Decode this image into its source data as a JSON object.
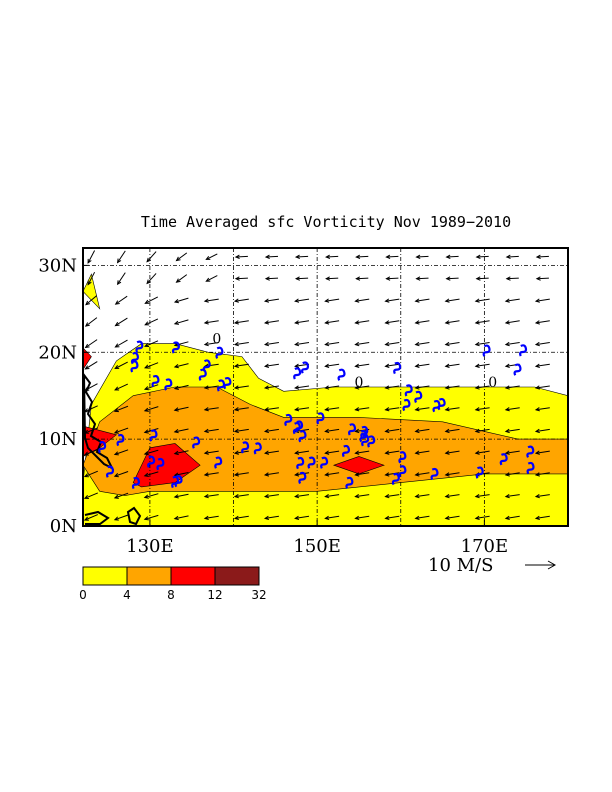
{
  "chart_data": {
    "type": "contour-vector-map",
    "title": "Time Averaged sfc Vorticity  Nov 1989−2010",
    "x_range_deg_east": [
      122,
      180
    ],
    "y_range_deg_north": [
      0,
      32
    ],
    "x_ticks": [
      {
        "value": 130,
        "label": "130E"
      },
      {
        "value": 150,
        "label": "150E"
      },
      {
        "value": 170,
        "label": "170E"
      }
    ],
    "y_ticks": [
      {
        "value": 0,
        "label": "0N"
      },
      {
        "value": 10,
        "label": "10N"
      },
      {
        "value": 20,
        "label": "20N"
      },
      {
        "value": 30,
        "label": "30N"
      }
    ],
    "gridlines": {
      "lon": [
        130,
        140,
        150,
        160,
        170
      ],
      "lat": [
        10,
        20,
        30
      ]
    },
    "reference_vector": {
      "label": "10 M/S",
      "speed_ms": 10
    },
    "colorbar": {
      "levels": [
        "0",
        "4",
        "8",
        "12",
        "32"
      ],
      "colors": [
        "#ffff00",
        "#ffa500",
        "#ff0000",
        "#8b1a1a"
      ]
    },
    "contour_labels": [
      {
        "text": "0",
        "lon": 138,
        "lat": 21
      },
      {
        "text": "0",
        "lon": 155,
        "lat": 16
      },
      {
        "text": "0",
        "lon": 171,
        "lat": 16
      }
    ],
    "regions": [
      {
        "level": "0-4",
        "color": "#ffff00",
        "points": [
          [
            122,
            5
          ],
          [
            123,
            14
          ],
          [
            126,
            19
          ],
          [
            129,
            21
          ],
          [
            133,
            21
          ],
          [
            137,
            20
          ],
          [
            141,
            19.5
          ],
          [
            143,
            17
          ],
          [
            146,
            15.5
          ],
          [
            152,
            16
          ],
          [
            160,
            16
          ],
          [
            170,
            16
          ],
          [
            176,
            16
          ],
          [
            180,
            15
          ],
          [
            180,
            0
          ],
          [
            122,
            0
          ]
        ]
      },
      {
        "level": "0-4",
        "color": "#ffff00",
        "points": [
          [
            122,
            27
          ],
          [
            123,
            29
          ],
          [
            124,
            25
          ]
        ]
      },
      {
        "level": "4-8",
        "color": "#ffa500",
        "points": [
          [
            122,
            7
          ],
          [
            124,
            12
          ],
          [
            128,
            15
          ],
          [
            133,
            16
          ],
          [
            138,
            16
          ],
          [
            142,
            14
          ],
          [
            146,
            12.5
          ],
          [
            155,
            12.5
          ],
          [
            165,
            12
          ],
          [
            174,
            10
          ],
          [
            180,
            10
          ],
          [
            180,
            6
          ],
          [
            170,
            6
          ],
          [
            160,
            5
          ],
          [
            150,
            4
          ],
          [
            138,
            4
          ],
          [
            130,
            4
          ],
          [
            127,
            3.5
          ],
          [
            124,
            4
          ]
        ]
      },
      {
        "level": "8-12",
        "color": "#ff0000",
        "points": [
          [
            128,
            5
          ],
          [
            130,
            9
          ],
          [
            133,
            9.5
          ],
          [
            136,
            7
          ],
          [
            133,
            5
          ],
          [
            129,
            4.5
          ]
        ]
      },
      {
        "level": "8-12",
        "color": "#ff0000",
        "points": [
          [
            152,
            7
          ],
          [
            155,
            8
          ],
          [
            158,
            7
          ],
          [
            155,
            6
          ]
        ]
      },
      {
        "level": "8-12",
        "color": "#ff0000",
        "points": [
          [
            122,
            8
          ],
          [
            122,
            11.5
          ],
          [
            124,
            11
          ],
          [
            126,
            10.5
          ],
          [
            124,
            9
          ]
        ]
      },
      {
        "level": "8-12",
        "color": "#ff0000",
        "points": [
          [
            122,
            18
          ],
          [
            122,
            20.5
          ],
          [
            123,
            19.5
          ]
        ]
      }
    ],
    "wind_vectors_note": "predominantly easterly trades; north-easterly flow west of 135E",
    "typhoon_symbols_note": "blue tropical cyclone genesis symbols scattered 5N-22N"
  }
}
